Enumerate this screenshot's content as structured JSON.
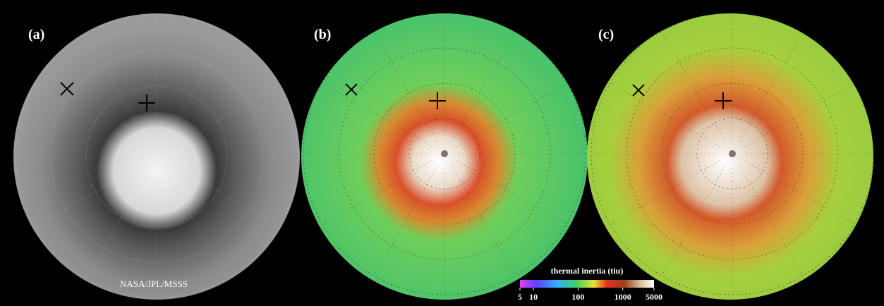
{
  "panels": [
    {
      "label": "(a)"
    },
    {
      "label": "(b)"
    },
    {
      "label": "(c)"
    }
  ],
  "credit": "NASA/JPL/MSSS",
  "colorbar": {
    "title": "thermal inertia (tiu)",
    "scale": "log",
    "lim": [
      5,
      5000
    ],
    "ticks": [
      5,
      10,
      100,
      1000,
      5000
    ]
  }
}
